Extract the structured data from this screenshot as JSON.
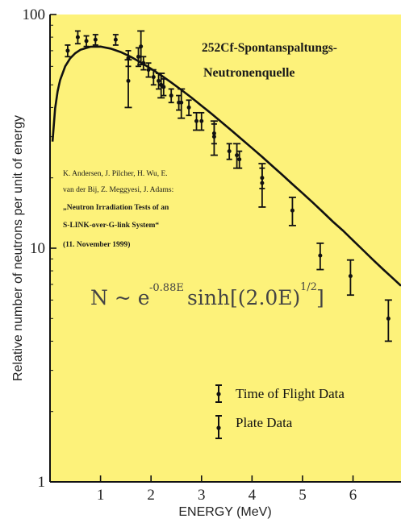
{
  "chart_data": {
    "type": "scatter",
    "xlabel": "ENERGY  (MeV)",
    "ylabel": "Relative number of neutrons per unit of energy",
    "xlim": [
      0,
      6.95
    ],
    "ylim": [
      1,
      100
    ],
    "yscale": "log",
    "x_ticks": [
      1,
      2,
      3,
      4,
      5,
      6
    ],
    "x_tick_labels": [
      "1",
      "2",
      "3",
      "4",
      "5",
      "6"
    ],
    "y_ticks": [
      1,
      10,
      100
    ],
    "y_tick_labels": [
      "1",
      "10",
      "100"
    ],
    "grid": false,
    "background": "#fdf27a",
    "legend_position": "bottom-right",
    "title_lines": [
      "252Cf-Spontanspaltungs-",
      "Neutronenquelle"
    ],
    "citation_lines": [
      "K. Andersen, J. Pilcher, H. Wu, E.",
      "van der Bij, Z. Meggyesi, J. Adams:",
      "„Neutron Irradiation Tests of an",
      "S-LINK-over-G-link System“",
      "(11. November 1999)"
    ],
    "equation": {
      "base": "N ~ e",
      "exp1": "-0.88E",
      "mid": "sinh[(2.0E)",
      "exp2": "1/2",
      "end": "]"
    },
    "series": [
      {
        "name": "Time of Flight Data",
        "points": [
          {
            "x": 0.35,
            "y": 70,
            "err": 4
          },
          {
            "x": 0.55,
            "y": 80,
            "err": 5
          },
          {
            "x": 0.72,
            "y": 77,
            "err": 4
          },
          {
            "x": 0.9,
            "y": 78,
            "err": 4
          },
          {
            "x": 1.3,
            "y": 78,
            "err": 4
          },
          {
            "x": 1.55,
            "y": 65,
            "err": 5
          },
          {
            "x": 1.75,
            "y": 66,
            "err": 6
          },
          {
            "x": 1.85,
            "y": 62,
            "err": 4
          },
          {
            "x": 1.95,
            "y": 58,
            "err": 4
          },
          {
            "x": 2.05,
            "y": 54,
            "err": 4
          },
          {
            "x": 2.15,
            "y": 52,
            "err": 4
          },
          {
            "x": 2.25,
            "y": 49,
            "err": 4
          },
          {
            "x": 2.4,
            "y": 45,
            "err": 3
          },
          {
            "x": 2.55,
            "y": 42,
            "err": 3
          },
          {
            "x": 2.75,
            "y": 40,
            "err": 3
          },
          {
            "x": 3.0,
            "y": 35,
            "err": 3
          },
          {
            "x": 3.25,
            "y": 31,
            "err": 3
          },
          {
            "x": 3.55,
            "y": 26,
            "err": 2
          },
          {
            "x": 3.75,
            "y": 24,
            "err": 2
          },
          {
            "x": 4.2,
            "y": 20,
            "err": 2
          }
        ]
      },
      {
        "name": "Plate Data",
        "points": [
          {
            "x": 1.55,
            "y": 52,
            "err": 12
          },
          {
            "x": 1.8,
            "y": 73,
            "err": 12
          },
          {
            "x": 2.2,
            "y": 50,
            "err": 6
          },
          {
            "x": 2.6,
            "y": 42,
            "err": 6
          },
          {
            "x": 2.9,
            "y": 35,
            "err": 3
          },
          {
            "x": 3.25,
            "y": 30,
            "err": 5
          },
          {
            "x": 3.7,
            "y": 25,
            "err": 3
          },
          {
            "x": 4.2,
            "y": 19,
            "err": 4
          },
          {
            "x": 4.8,
            "y": 14.5,
            "err": 2
          },
          {
            "x": 5.35,
            "y": 9.3,
            "err": 1.2
          },
          {
            "x": 5.95,
            "y": 7.6,
            "err": 1.3
          },
          {
            "x": 6.7,
            "y": 5.0,
            "err": 1.0
          }
        ]
      }
    ],
    "fit_curve": {
      "equation": "N ~ e^(-0.88E) sinh[(2.0E)^(1/2)]",
      "x": [
        0.05,
        0.1,
        0.15,
        0.2,
        0.3,
        0.4,
        0.5,
        0.6,
        0.8,
        1.0,
        1.2,
        1.4,
        1.6,
        1.8,
        2.0,
        2.2,
        2.4,
        2.6,
        2.8,
        3.0,
        3.2,
        3.4,
        3.6,
        3.8,
        4.0,
        4.2,
        4.4,
        4.6,
        4.8,
        5.0,
        5.2,
        5.4,
        5.6,
        5.8,
        6.0,
        6.2,
        6.4,
        6.6,
        6.8,
        6.95
      ],
      "y": [
        28.6,
        39.6,
        46.9,
        52.4,
        60.0,
        65.0,
        68.3,
        70.6,
        72.8,
        72.9,
        71.5,
        69.1,
        65.9,
        62.3,
        58.6,
        54.9,
        51.2,
        47.6,
        44.1,
        40.7,
        37.6,
        34.6,
        31.8,
        29.2,
        26.8,
        24.6,
        22.5,
        20.6,
        18.8,
        17.2,
        15.7,
        14.3,
        13.0,
        11.9,
        10.8,
        9.8,
        8.9,
        8.1,
        7.4,
        6.9
      ]
    }
  }
}
